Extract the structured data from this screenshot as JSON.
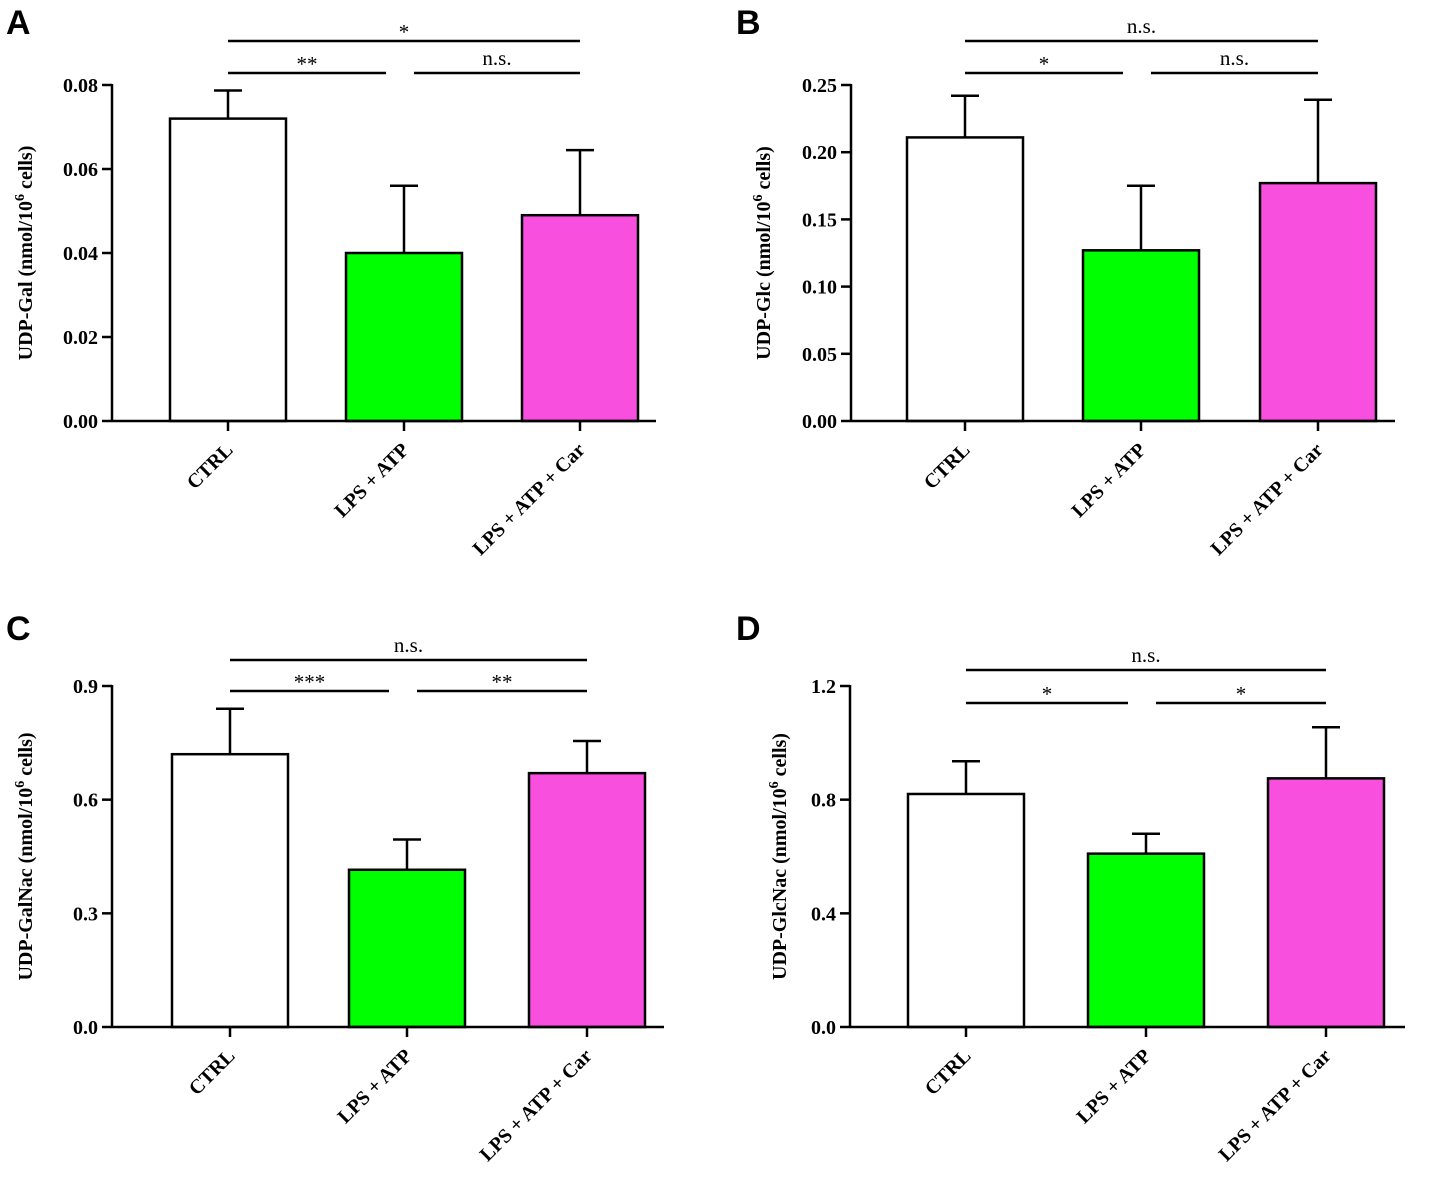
{
  "chart_data": [
    {
      "panel": "A",
      "type": "bar",
      "categories": [
        "CTRL",
        "LPS + ATP",
        "LPS + ATP + Car"
      ],
      "values": [
        0.072,
        0.04,
        0.049
      ],
      "errors": [
        0.0067,
        0.016,
        0.0155
      ],
      "colors": [
        "#ffffff",
        "#00ff00",
        "#f84fdf"
      ],
      "ylabel_main": "UDP-Gal (nmol/10",
      "ylabel_sup": "6",
      "ylabel_tail": " cells)",
      "ylim": [
        0,
        0.08
      ],
      "ticks": [
        0.0,
        0.02,
        0.04,
        0.06,
        0.08
      ],
      "tick_labels": [
        "0.00",
        "0.02",
        "0.04",
        "0.06",
        "0.08"
      ],
      "significance": [
        {
          "from": 0,
          "to": 1,
          "label": "**",
          "level": 1
        },
        {
          "from": 1,
          "to": 2,
          "label": "n.s.",
          "level": 1
        },
        {
          "from": 0,
          "to": 2,
          "label": "*",
          "level": 2
        }
      ]
    },
    {
      "panel": "B",
      "type": "bar",
      "categories": [
        "CTRL",
        "LPS + ATP",
        "LPS + ATP + Car"
      ],
      "values": [
        0.211,
        0.127,
        0.177
      ],
      "errors": [
        0.031,
        0.048,
        0.062
      ],
      "colors": [
        "#ffffff",
        "#00ff00",
        "#f84fdf"
      ],
      "ylabel_main": "UDP-Glc (nmol/10",
      "ylabel_sup": "6",
      "ylabel_tail": " cells)",
      "ylim": [
        0,
        0.25
      ],
      "ticks": [
        0.0,
        0.05,
        0.1,
        0.15,
        0.2,
        0.25
      ],
      "tick_labels": [
        "0.00",
        "0.05",
        "0.10",
        "0.15",
        "0.20",
        "0.25"
      ],
      "significance": [
        {
          "from": 0,
          "to": 1,
          "label": "*",
          "level": 1
        },
        {
          "from": 1,
          "to": 2,
          "label": "n.s.",
          "level": 1
        },
        {
          "from": 0,
          "to": 2,
          "label": "n.s.",
          "level": 2
        }
      ]
    },
    {
      "panel": "C",
      "type": "bar",
      "categories": [
        "CTRL",
        "LPS + ATP",
        "LPS + ATP + Car"
      ],
      "values": [
        0.72,
        0.415,
        0.67
      ],
      "errors": [
        0.12,
        0.08,
        0.085
      ],
      "colors": [
        "#ffffff",
        "#00ff00",
        "#f84fdf"
      ],
      "ylabel_main": "UDP-GalNac (nmol/10",
      "ylabel_sup": "6",
      "ylabel_tail": " cells)",
      "ylim": [
        0,
        0.9
      ],
      "ticks": [
        0.0,
        0.3,
        0.6,
        0.9
      ],
      "tick_labels": [
        "0.0",
        "0.3",
        "0.6",
        "0.9"
      ],
      "significance": [
        {
          "from": 0,
          "to": 1,
          "label": "***",
          "level": 1
        },
        {
          "from": 1,
          "to": 2,
          "label": "**",
          "level": 1
        },
        {
          "from": 0,
          "to": 2,
          "label": "n.s.",
          "level": 2
        }
      ]
    },
    {
      "panel": "D",
      "type": "bar",
      "categories": [
        "CTRL",
        "LPS + ATP",
        "LPS + ATP + Car"
      ],
      "values": [
        0.82,
        0.61,
        0.875
      ],
      "errors": [
        0.115,
        0.07,
        0.18
      ],
      "colors": [
        "#ffffff",
        "#00ff00",
        "#f84fdf"
      ],
      "ylabel_main": "UDP-GlcNac (nmol/10",
      "ylabel_sup": "6",
      "ylabel_tail": " cells)",
      "ylim": [
        0,
        1.2
      ],
      "ticks": [
        0.0,
        0.4,
        0.8,
        1.2
      ],
      "tick_labels": [
        "0.0",
        "0.4",
        "0.8",
        "1.2"
      ],
      "significance": [
        {
          "from": 0,
          "to": 1,
          "label": "*",
          "level": 1
        },
        {
          "from": 1,
          "to": 2,
          "label": "*",
          "level": 1
        },
        {
          "from": 0,
          "to": 2,
          "label": "n.s.",
          "level": 2
        }
      ]
    }
  ]
}
